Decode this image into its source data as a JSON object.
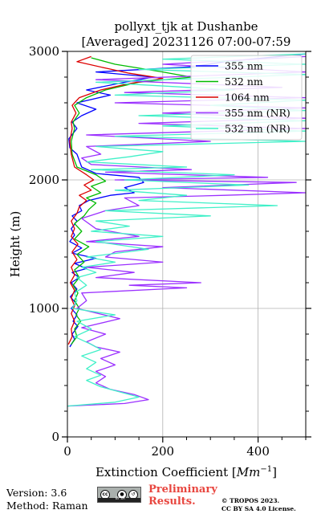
{
  "chart_data": {
    "type": "line",
    "title": "pollyxt_tjk at Dushanbe",
    "subtitle": "[Averaged] 20231126 07:00-07:59",
    "xlabel": "Extinction Coefficient [$Mm^{-1}$]",
    "xlabel_main": "Extinction Coefficient [",
    "xlabel_unit": "Mm",
    "xlabel_exp": "−1",
    "xlabel_close": "]",
    "ylabel": "Height (m)",
    "xlim": [
      0,
      500
    ],
    "ylim": [
      0,
      3000
    ],
    "x_ticks": [
      0,
      200,
      400
    ],
    "y_ticks": [
      0,
      1000,
      2000,
      3000
    ],
    "grid": true,
    "legend_position": "top-right",
    "series": [
      {
        "name": "355 nm",
        "color": "#0000ff",
        "points": [
          [
            5,
            700
          ],
          [
            15,
            760
          ],
          [
            10,
            800
          ],
          [
            22,
            860
          ],
          [
            12,
            900
          ],
          [
            20,
            950
          ],
          [
            8,
            1000
          ],
          [
            18,
            1040
          ],
          [
            6,
            1090
          ],
          [
            20,
            1150
          ],
          [
            8,
            1200
          ],
          [
            25,
            1240
          ],
          [
            10,
            1280
          ],
          [
            40,
            1310
          ],
          [
            15,
            1350
          ],
          [
            60,
            1390
          ],
          [
            10,
            1430
          ],
          [
            30,
            1470
          ],
          [
            5,
            1520
          ],
          [
            15,
            1570
          ],
          [
            8,
            1620
          ],
          [
            20,
            1680
          ],
          [
            10,
            1720
          ],
          [
            30,
            1760
          ],
          [
            25,
            1800
          ],
          [
            45,
            1840
          ],
          [
            90,
            1880
          ],
          [
            140,
            1900
          ],
          [
            120,
            1940
          ],
          [
            160,
            1980
          ],
          [
            150,
            2020
          ],
          [
            60,
            2050
          ],
          [
            30,
            2100
          ],
          [
            20,
            2200
          ],
          [
            5,
            2250
          ],
          [
            3,
            2320
          ],
          [
            20,
            2400
          ],
          [
            10,
            2450
          ],
          [
            30,
            2500
          ],
          [
            60,
            2550
          ],
          [
            20,
            2600
          ],
          [
            90,
            2660
          ],
          [
            40,
            2700
          ],
          [
            120,
            2760
          ],
          [
            180,
            2800
          ],
          [
            60,
            2840
          ],
          [
            260,
            2880
          ],
          [
            330,
            2920
          ],
          [
            500,
            2980
          ]
        ]
      },
      {
        "name": "532 nm",
        "color": "#00bb00",
        "points": [
          [
            8,
            720
          ],
          [
            20,
            780
          ],
          [
            15,
            840
          ],
          [
            28,
            900
          ],
          [
            18,
            950
          ],
          [
            25,
            1000
          ],
          [
            15,
            1060
          ],
          [
            22,
            1120
          ],
          [
            12,
            1180
          ],
          [
            25,
            1240
          ],
          [
            15,
            1300
          ],
          [
            35,
            1360
          ],
          [
            20,
            1420
          ],
          [
            45,
            1480
          ],
          [
            15,
            1540
          ],
          [
            30,
            1600
          ],
          [
            15,
            1660
          ],
          [
            35,
            1720
          ],
          [
            45,
            1770
          ],
          [
            60,
            1820
          ],
          [
            40,
            1860
          ],
          [
            70,
            1900
          ],
          [
            50,
            1950
          ],
          [
            80,
            1990
          ],
          [
            60,
            2040
          ],
          [
            20,
            2100
          ],
          [
            10,
            2200
          ],
          [
            8,
            2300
          ],
          [
            15,
            2400
          ],
          [
            12,
            2450
          ],
          [
            25,
            2520
          ],
          [
            15,
            2580
          ],
          [
            40,
            2640
          ],
          [
            80,
            2700
          ],
          [
            150,
            2760
          ],
          [
            260,
            2800
          ],
          [
            200,
            2840
          ],
          [
            100,
            2900
          ],
          [
            50,
            2950
          ]
        ]
      },
      {
        "name": "1064 nm",
        "color": "#dd0000",
        "points": [
          [
            2,
            720
          ],
          [
            10,
            780
          ],
          [
            8,
            840
          ],
          [
            15,
            900
          ],
          [
            8,
            960
          ],
          [
            15,
            1020
          ],
          [
            8,
            1080
          ],
          [
            15,
            1140
          ],
          [
            6,
            1200
          ],
          [
            15,
            1260
          ],
          [
            8,
            1320
          ],
          [
            20,
            1380
          ],
          [
            10,
            1440
          ],
          [
            22,
            1500
          ],
          [
            8,
            1560
          ],
          [
            15,
            1620
          ],
          [
            8,
            1680
          ],
          [
            20,
            1740
          ],
          [
            25,
            1790
          ],
          [
            40,
            1840
          ],
          [
            25,
            1880
          ],
          [
            50,
            1920
          ],
          [
            35,
            1960
          ],
          [
            55,
            2000
          ],
          [
            40,
            2040
          ],
          [
            15,
            2100
          ],
          [
            8,
            2200
          ],
          [
            5,
            2300
          ],
          [
            10,
            2400
          ],
          [
            8,
            2450
          ],
          [
            18,
            2520
          ],
          [
            10,
            2580
          ],
          [
            25,
            2640
          ],
          [
            70,
            2700
          ],
          [
            130,
            2750
          ],
          [
            200,
            2790
          ],
          [
            130,
            2830
          ],
          [
            80,
            2870
          ],
          [
            20,
            2920
          ],
          [
            50,
            2960
          ]
        ]
      },
      {
        "name": "355 nm (NR)",
        "color": "#9b30ff",
        "points": [
          [
            0,
            240
          ],
          [
            120,
            260
          ],
          [
            170,
            290
          ],
          [
            140,
            330
          ],
          [
            90,
            370
          ],
          [
            60,
            420
          ],
          [
            80,
            470
          ],
          [
            60,
            510
          ],
          [
            100,
            560
          ],
          [
            70,
            610
          ],
          [
            110,
            660
          ],
          [
            60,
            700
          ],
          [
            40,
            740
          ],
          [
            80,
            800
          ],
          [
            30,
            850
          ],
          [
            110,
            920
          ],
          [
            20,
            1000
          ],
          [
            40,
            1060
          ],
          [
            30,
            1120
          ],
          [
            250,
            1160
          ],
          [
            130,
            1180
          ],
          [
            280,
            1200
          ],
          [
            60,
            1240
          ],
          [
            140,
            1280
          ],
          [
            40,
            1320
          ],
          [
            200,
            1360
          ],
          [
            80,
            1400
          ],
          [
            100,
            1440
          ],
          [
            200,
            1480
          ],
          [
            40,
            1520
          ],
          [
            150,
            1560
          ],
          [
            60,
            1620
          ],
          [
            30,
            1700
          ],
          [
            80,
            1760
          ],
          [
            150,
            1800
          ],
          [
            120,
            1860
          ],
          [
            330,
            1880
          ],
          [
            500,
            1900
          ],
          [
            200,
            1940
          ],
          [
            480,
            1980
          ],
          [
            100,
            2000
          ],
          [
            420,
            2020
          ],
          [
            80,
            2060
          ],
          [
            260,
            2080
          ],
          [
            50,
            2120
          ],
          [
            30,
            2170
          ],
          [
            70,
            2200
          ],
          [
            40,
            2260
          ],
          [
            300,
            2300
          ],
          [
            40,
            2350
          ],
          [
            500,
            2400
          ],
          [
            150,
            2440
          ],
          [
            500,
            2480
          ],
          [
            200,
            2520
          ],
          [
            500,
            2560
          ],
          [
            100,
            2600
          ],
          [
            500,
            2640
          ],
          [
            120,
            2680
          ],
          [
            450,
            2720
          ],
          [
            60,
            2780
          ],
          [
            500,
            2840
          ],
          [
            200,
            2900
          ],
          [
            500,
            2960
          ]
        ]
      },
      {
        "name": "532 nm (NR)",
        "color": "#40f0c8",
        "points": [
          [
            0,
            240
          ],
          [
            100,
            270
          ],
          [
            150,
            310
          ],
          [
            110,
            350
          ],
          [
            70,
            390
          ],
          [
            40,
            440
          ],
          [
            70,
            480
          ],
          [
            40,
            530
          ],
          [
            60,
            580
          ],
          [
            30,
            630
          ],
          [
            70,
            680
          ],
          [
            50,
            720
          ],
          [
            15,
            780
          ],
          [
            50,
            840
          ],
          [
            20,
            900
          ],
          [
            100,
            950
          ],
          [
            10,
            1000
          ],
          [
            20,
            1060
          ],
          [
            15,
            1120
          ],
          [
            40,
            1180
          ],
          [
            20,
            1240
          ],
          [
            60,
            1280
          ],
          [
            30,
            1320
          ],
          [
            100,
            1360
          ],
          [
            40,
            1400
          ],
          [
            170,
            1460
          ],
          [
            60,
            1520
          ],
          [
            200,
            1560
          ],
          [
            50,
            1600
          ],
          [
            130,
            1640
          ],
          [
            60,
            1680
          ],
          [
            300,
            1720
          ],
          [
            80,
            1760
          ],
          [
            440,
            1800
          ],
          [
            150,
            1840
          ],
          [
            250,
            1880
          ],
          [
            100,
            1920
          ],
          [
            380,
            1960
          ],
          [
            120,
            2000
          ],
          [
            350,
            2040
          ],
          [
            50,
            2080
          ],
          [
            250,
            2100
          ],
          [
            40,
            2140
          ],
          [
            130,
            2180
          ],
          [
            200,
            2220
          ],
          [
            60,
            2260
          ],
          [
            500,
            2300
          ],
          [
            100,
            2340
          ],
          [
            500,
            2380
          ],
          [
            200,
            2420
          ],
          [
            500,
            2460
          ],
          [
            150,
            2500
          ],
          [
            500,
            2540
          ],
          [
            300,
            2580
          ],
          [
            500,
            2620
          ],
          [
            100,
            2660
          ],
          [
            350,
            2700
          ],
          [
            60,
            2760
          ],
          [
            500,
            2820
          ],
          [
            150,
            2860
          ],
          [
            500,
            2900
          ],
          [
            200,
            2940
          ],
          [
            500,
            2980
          ]
        ]
      }
    ]
  },
  "footer": {
    "version": "Version: 3.6",
    "method": "Method: Raman",
    "cc_text": "cc",
    "cc_strip": "BY SA",
    "preliminary_line1": "Preliminary",
    "preliminary_line2": "Results.",
    "copyright_line1": "© TROPOS 2023.",
    "copyright_line2": "CC BY SA 4.0 License."
  },
  "colors": {
    "grid": "#b0b0b0",
    "preliminary": "#e8463f"
  }
}
